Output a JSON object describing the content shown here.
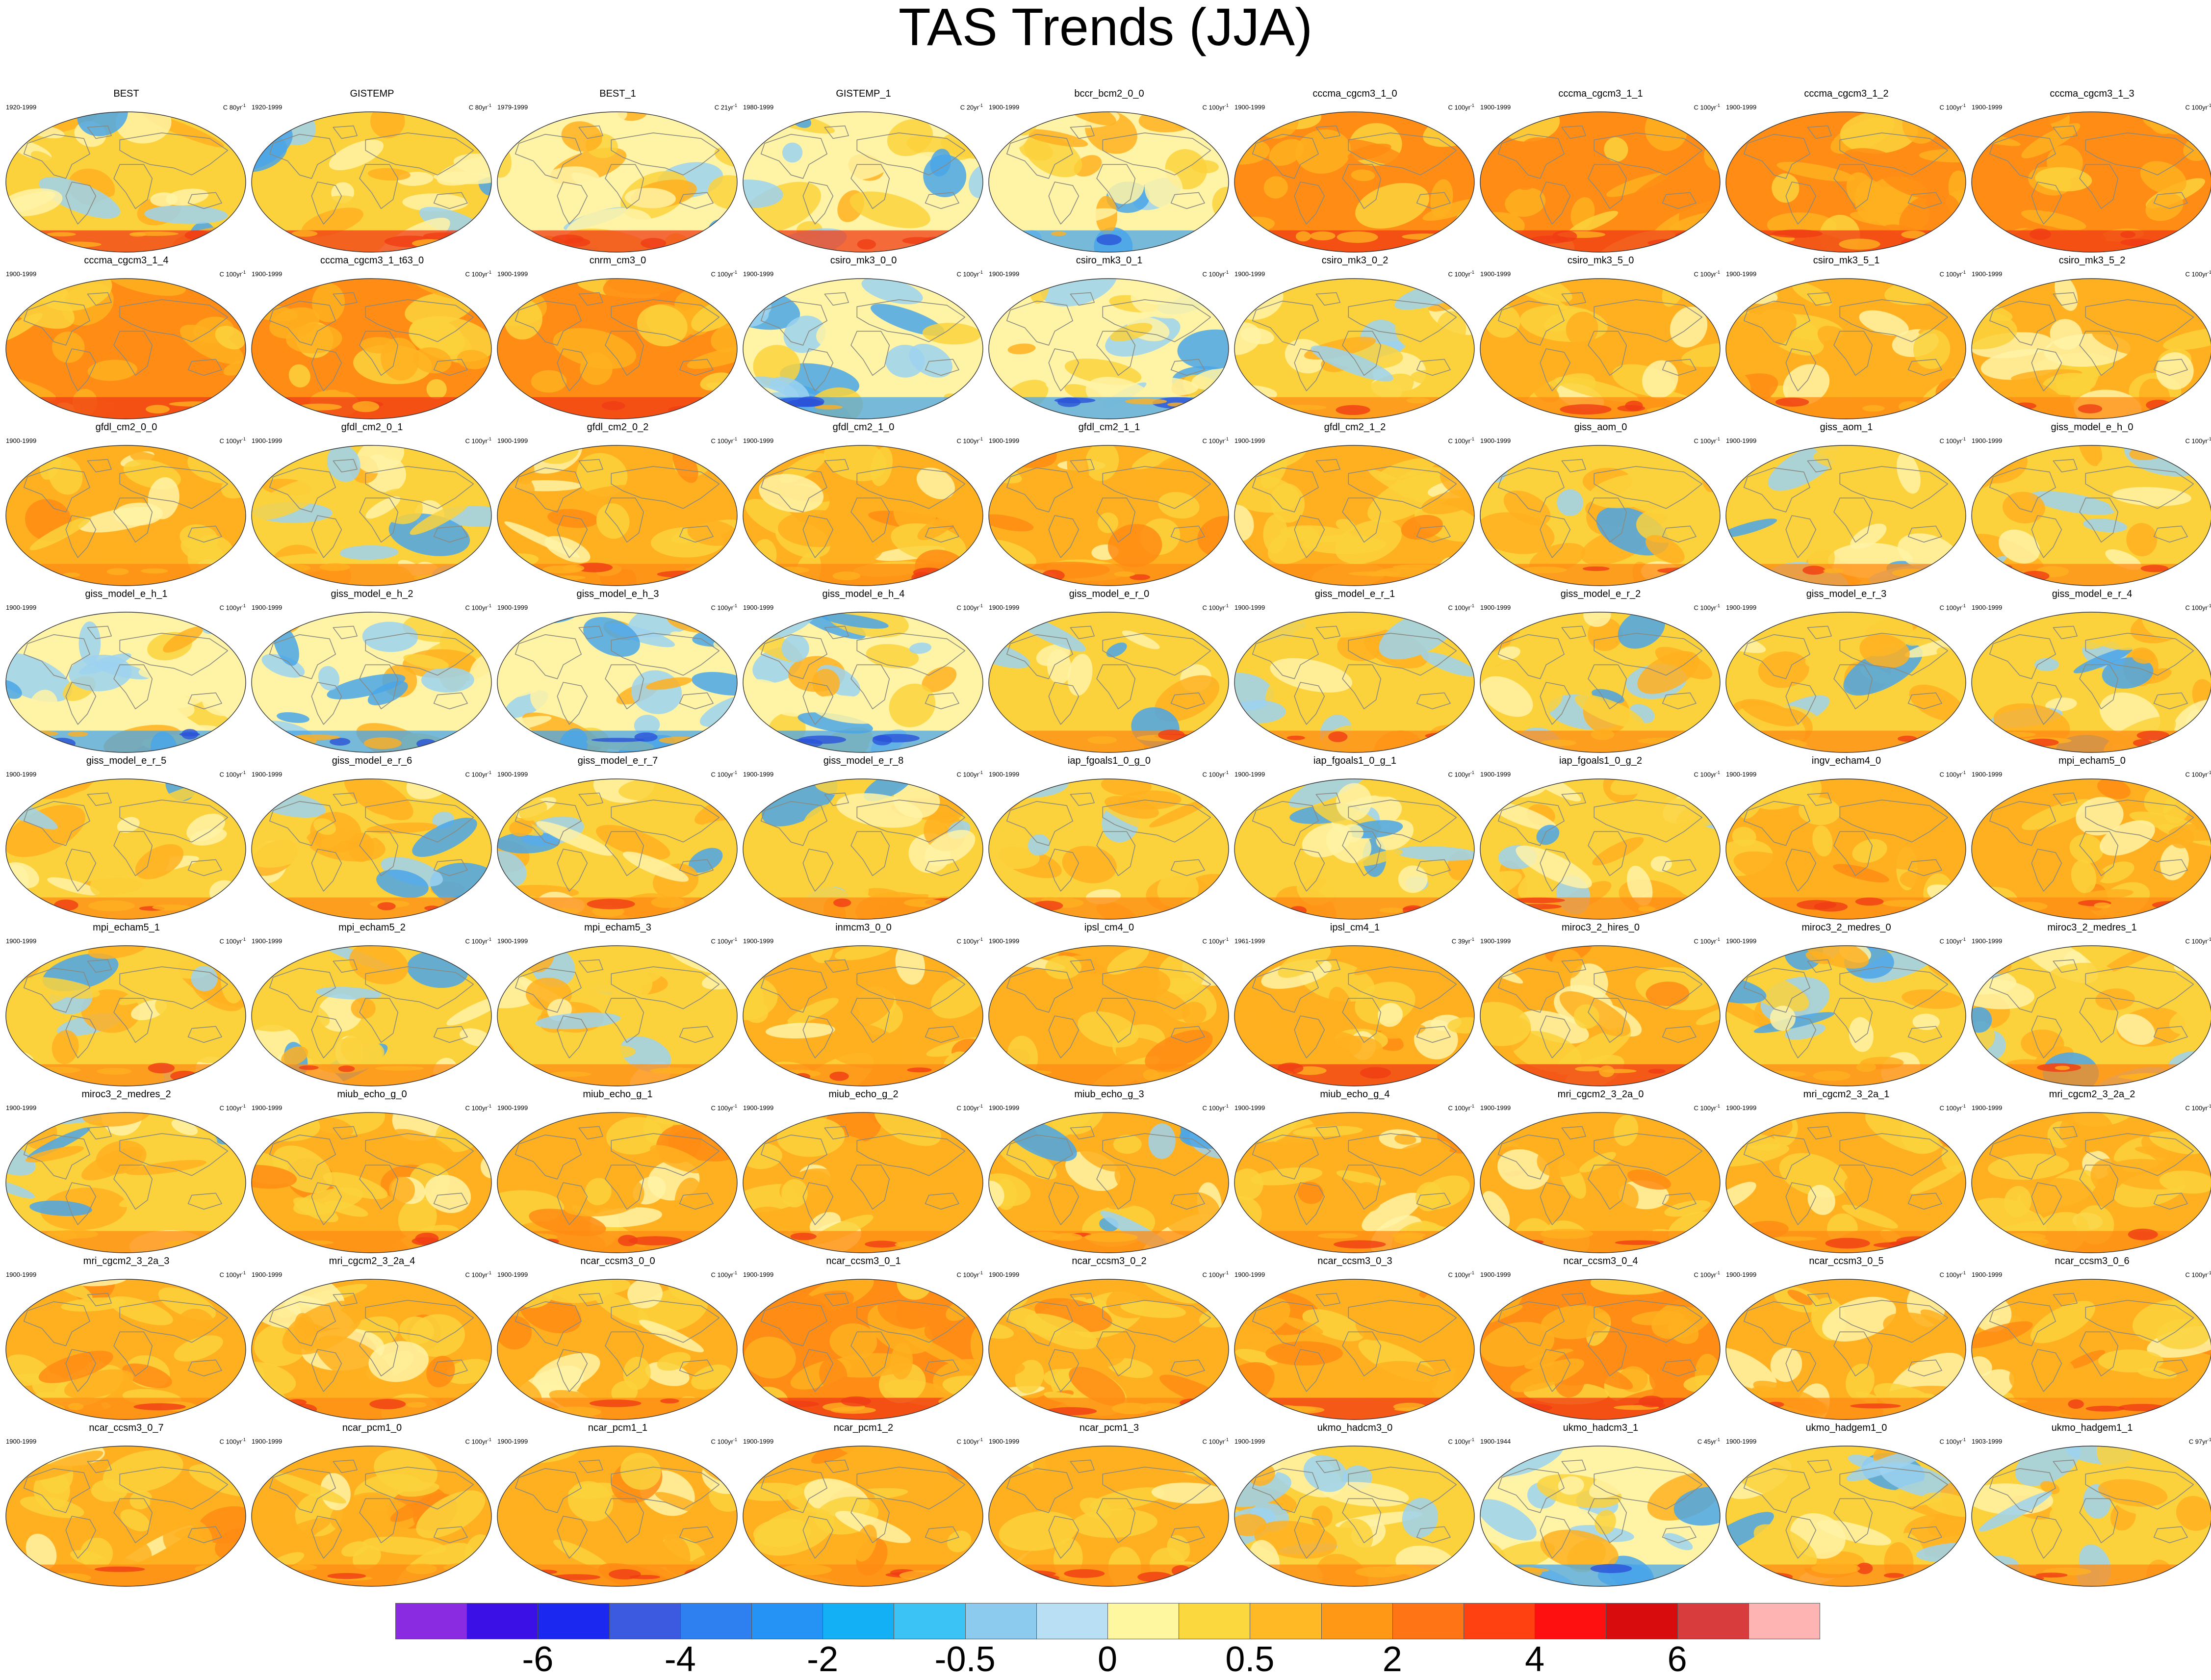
{
  "figure": {
    "title": "TAS Trends (JJA)"
  },
  "panels": [
    {
      "name": "BEST",
      "period": "1920-1999",
      "unit": "C 80yr",
      "warm": 0.55,
      "scheme": "obs"
    },
    {
      "name": "GISTEMP",
      "period": "1920-1999",
      "unit": "C 80yr",
      "warm": 0.6,
      "scheme": "obs"
    },
    {
      "name": "BEST_1",
      "period": "1979-1999",
      "unit": "C 21yr",
      "warm": 0.45,
      "scheme": "obs"
    },
    {
      "name": "GISTEMP_1",
      "period": "1980-1999",
      "unit": "C 20yr",
      "warm": 0.4,
      "scheme": "obs"
    },
    {
      "name": "bccr_bcm2_0_0",
      "period": "1900-1999",
      "unit": "C 100yr",
      "warm": 0.45,
      "scheme": "cool"
    },
    {
      "name": "cccma_cgcm3_1_0",
      "period": "1900-1999",
      "unit": "C 100yr",
      "warm": 0.95,
      "scheme": "hot"
    },
    {
      "name": "cccma_cgcm3_1_1",
      "period": "1900-1999",
      "unit": "C 100yr",
      "warm": 0.95,
      "scheme": "hot"
    },
    {
      "name": "cccma_cgcm3_1_2",
      "period": "1900-1999",
      "unit": "C 100yr",
      "warm": 0.95,
      "scheme": "hot"
    },
    {
      "name": "cccma_cgcm3_1_3",
      "period": "1900-1999",
      "unit": "C 100yr",
      "warm": 0.95,
      "scheme": "hot"
    },
    {
      "name": "cccma_cgcm3_1_4",
      "period": "1900-1999",
      "unit": "C 100yr",
      "warm": 0.95,
      "scheme": "hot"
    },
    {
      "name": "cccma_cgcm3_1_t63_0",
      "period": "1900-1999",
      "unit": "C 100yr",
      "warm": 0.95,
      "scheme": "hot"
    },
    {
      "name": "cnrm_cm3_0",
      "period": "1900-1999",
      "unit": "C 100yr",
      "warm": 0.9,
      "scheme": "hot"
    },
    {
      "name": "csiro_mk3_0_0",
      "period": "1900-1999",
      "unit": "C 100yr",
      "warm": 0.4,
      "scheme": "cool"
    },
    {
      "name": "csiro_mk3_0_1",
      "period": "1900-1999",
      "unit": "C 100yr",
      "warm": 0.4,
      "scheme": "cool"
    },
    {
      "name": "csiro_mk3_0_2",
      "period": "1900-1999",
      "unit": "C 100yr",
      "warm": 0.55,
      "scheme": "mixed"
    },
    {
      "name": "csiro_mk3_5_0",
      "period": "1900-1999",
      "unit": "C 100yr",
      "warm": 0.75,
      "scheme": "warm"
    },
    {
      "name": "csiro_mk3_5_1",
      "period": "1900-1999",
      "unit": "C 100yr",
      "warm": 0.75,
      "scheme": "warm"
    },
    {
      "name": "csiro_mk3_5_2",
      "period": "1900-1999",
      "unit": "C 100yr",
      "warm": 0.75,
      "scheme": "warm"
    },
    {
      "name": "gfdl_cm2_0_0",
      "period": "1900-1999",
      "unit": "C 100yr",
      "warm": 0.7,
      "scheme": "warm"
    },
    {
      "name": "gfdl_cm2_0_1",
      "period": "1900-1999",
      "unit": "C 100yr",
      "warm": 0.55,
      "scheme": "mixed"
    },
    {
      "name": "gfdl_cm2_0_2",
      "period": "1900-1999",
      "unit": "C 100yr",
      "warm": 0.75,
      "scheme": "warm"
    },
    {
      "name": "gfdl_cm2_1_0",
      "period": "1900-1999",
      "unit": "C 100yr",
      "warm": 0.75,
      "scheme": "warm"
    },
    {
      "name": "gfdl_cm2_1_1",
      "period": "1900-1999",
      "unit": "C 100yr",
      "warm": 0.7,
      "scheme": "warm"
    },
    {
      "name": "gfdl_cm2_1_2",
      "period": "1900-1999",
      "unit": "C 100yr",
      "warm": 0.7,
      "scheme": "warm"
    },
    {
      "name": "giss_aom_0",
      "period": "1900-1999",
      "unit": "C 100yr",
      "warm": 0.6,
      "scheme": "mixed"
    },
    {
      "name": "giss_aom_1",
      "period": "1900-1999",
      "unit": "C 100yr",
      "warm": 0.6,
      "scheme": "mixed"
    },
    {
      "name": "giss_model_e_h_0",
      "period": "1900-1999",
      "unit": "C 100yr",
      "warm": 0.55,
      "scheme": "mixed"
    },
    {
      "name": "giss_model_e_h_1",
      "period": "1900-1999",
      "unit": "C 100yr",
      "warm": 0.5,
      "scheme": "cool"
    },
    {
      "name": "giss_model_e_h_2",
      "period": "1900-1999",
      "unit": "C 100yr",
      "warm": 0.5,
      "scheme": "cool"
    },
    {
      "name": "giss_model_e_h_3",
      "period": "1900-1999",
      "unit": "C 100yr",
      "warm": 0.5,
      "scheme": "cool"
    },
    {
      "name": "giss_model_e_h_4",
      "period": "1900-1999",
      "unit": "C 100yr",
      "warm": 0.5,
      "scheme": "cool"
    },
    {
      "name": "giss_model_e_r_0",
      "period": "1900-1999",
      "unit": "C 100yr",
      "warm": 0.65,
      "scheme": "mixed"
    },
    {
      "name": "giss_model_e_r_1",
      "period": "1900-1999",
      "unit": "C 100yr",
      "warm": 0.65,
      "scheme": "mixed"
    },
    {
      "name": "giss_model_e_r_2",
      "period": "1900-1999",
      "unit": "C 100yr",
      "warm": 0.65,
      "scheme": "mixed"
    },
    {
      "name": "giss_model_e_r_3",
      "period": "1900-1999",
      "unit": "C 100yr",
      "warm": 0.65,
      "scheme": "mixed"
    },
    {
      "name": "giss_model_e_r_4",
      "period": "1900-1999",
      "unit": "C 100yr",
      "warm": 0.65,
      "scheme": "mixed"
    },
    {
      "name": "giss_model_e_r_5",
      "period": "1900-1999",
      "unit": "C 100yr",
      "warm": 0.65,
      "scheme": "mixed"
    },
    {
      "name": "giss_model_e_r_6",
      "period": "1900-1999",
      "unit": "C 100yr",
      "warm": 0.65,
      "scheme": "mixed"
    },
    {
      "name": "giss_model_e_r_7",
      "period": "1900-1999",
      "unit": "C 100yr",
      "warm": 0.65,
      "scheme": "mixed"
    },
    {
      "name": "giss_model_e_r_8",
      "period": "1900-1999",
      "unit": "C 100yr",
      "warm": 0.6,
      "scheme": "mixed"
    },
    {
      "name": "iap_fgoals1_0_g_0",
      "period": "1900-1999",
      "unit": "C 100yr",
      "warm": 0.6,
      "scheme": "mixed"
    },
    {
      "name": "iap_fgoals1_0_g_1",
      "period": "1900-1999",
      "unit": "C 100yr",
      "warm": 0.65,
      "scheme": "mixed"
    },
    {
      "name": "iap_fgoals1_0_g_2",
      "period": "1900-1999",
      "unit": "C 100yr",
      "warm": 0.55,
      "scheme": "mixed"
    },
    {
      "name": "ingv_echam4_0",
      "period": "1900-1999",
      "unit": "C 100yr",
      "warm": 0.8,
      "scheme": "warm"
    },
    {
      "name": "mpi_echam5_0",
      "period": "1900-1999",
      "unit": "C 100yr",
      "warm": 0.7,
      "scheme": "warm"
    },
    {
      "name": "mpi_echam5_1",
      "period": "1900-1999",
      "unit": "C 100yr",
      "warm": 0.6,
      "scheme": "mixed"
    },
    {
      "name": "mpi_echam5_2",
      "period": "1900-1999",
      "unit": "C 100yr",
      "warm": 0.6,
      "scheme": "mixed"
    },
    {
      "name": "mpi_echam5_3",
      "period": "1900-1999",
      "unit": "C 100yr",
      "warm": 0.6,
      "scheme": "mixed"
    },
    {
      "name": "inmcm3_0_0",
      "period": "1900-1999",
      "unit": "C 100yr",
      "warm": 0.8,
      "scheme": "warm"
    },
    {
      "name": "ipsl_cm4_0",
      "period": "1900-1999",
      "unit": "C 100yr",
      "warm": 0.8,
      "scheme": "warm"
    },
    {
      "name": "ipsl_cm4_1",
      "period": "1961-1999",
      "unit": "C 39yr",
      "warm": 0.85,
      "scheme": "warm"
    },
    {
      "name": "miroc3_2_hires_0",
      "period": "1900-1999",
      "unit": "C 100yr",
      "warm": 0.85,
      "scheme": "warm"
    },
    {
      "name": "miroc3_2_medres_0",
      "period": "1900-1999",
      "unit": "C 100yr",
      "warm": 0.6,
      "scheme": "mixed"
    },
    {
      "name": "miroc3_2_medres_1",
      "period": "1900-1999",
      "unit": "C 100yr",
      "warm": 0.6,
      "scheme": "mixed"
    },
    {
      "name": "miroc3_2_medres_2",
      "period": "1900-1999",
      "unit": "C 100yr",
      "warm": 0.6,
      "scheme": "mixed"
    },
    {
      "name": "miub_echo_g_0",
      "period": "1900-1999",
      "unit": "C 100yr",
      "warm": 0.75,
      "scheme": "warm"
    },
    {
      "name": "miub_echo_g_1",
      "period": "1900-1999",
      "unit": "C 100yr",
      "warm": 0.75,
      "scheme": "warm"
    },
    {
      "name": "miub_echo_g_2",
      "period": "1900-1999",
      "unit": "C 100yr",
      "warm": 0.7,
      "scheme": "warm"
    },
    {
      "name": "miub_echo_g_3",
      "period": "1900-1999",
      "unit": "C 100yr",
      "warm": 0.7,
      "scheme": "mixed"
    },
    {
      "name": "miub_echo_g_4",
      "period": "1900-1999",
      "unit": "C 100yr",
      "warm": 0.75,
      "scheme": "warm"
    },
    {
      "name": "mri_cgcm2_3_2a_0",
      "period": "1900-1999",
      "unit": "C 100yr",
      "warm": 0.75,
      "scheme": "warm"
    },
    {
      "name": "mri_cgcm2_3_2a_1",
      "period": "1900-1999",
      "unit": "C 100yr",
      "warm": 0.7,
      "scheme": "warm"
    },
    {
      "name": "mri_cgcm2_3_2a_2",
      "period": "1900-1999",
      "unit": "C 100yr",
      "warm": 0.7,
      "scheme": "warm"
    },
    {
      "name": "mri_cgcm2_3_2a_3",
      "period": "1900-1999",
      "unit": "C 100yr",
      "warm": 0.7,
      "scheme": "warm"
    },
    {
      "name": "mri_cgcm2_3_2a_4",
      "period": "1900-1999",
      "unit": "C 100yr",
      "warm": 0.7,
      "scheme": "warm"
    },
    {
      "name": "ncar_ccsm3_0_0",
      "period": "1900-1999",
      "unit": "C 100yr",
      "warm": 0.8,
      "scheme": "warm"
    },
    {
      "name": "ncar_ccsm3_0_1",
      "period": "1900-1999",
      "unit": "C 100yr",
      "warm": 0.9,
      "scheme": "hot"
    },
    {
      "name": "ncar_ccsm3_0_2",
      "period": "1900-1999",
      "unit": "C 100yr",
      "warm": 0.8,
      "scheme": "warm"
    },
    {
      "name": "ncar_ccsm3_0_3",
      "period": "1900-1999",
      "unit": "C 100yr",
      "warm": 0.85,
      "scheme": "hot"
    },
    {
      "name": "ncar_ccsm3_0_4",
      "period": "1900-1999",
      "unit": "C 100yr",
      "warm": 0.9,
      "scheme": "hot"
    },
    {
      "name": "ncar_ccsm3_0_5",
      "period": "1900-1999",
      "unit": "C 100yr",
      "warm": 0.8,
      "scheme": "warm"
    },
    {
      "name": "ncar_ccsm3_0_6",
      "period": "1900-1999",
      "unit": "C 100yr",
      "warm": 0.8,
      "scheme": "warm"
    },
    {
      "name": "ncar_ccsm3_0_7",
      "period": "1900-1999",
      "unit": "C 100yr",
      "warm": 0.8,
      "scheme": "warm"
    },
    {
      "name": "ncar_pcm1_0",
      "period": "1900-1999",
      "unit": "C 100yr",
      "warm": 0.75,
      "scheme": "warm"
    },
    {
      "name": "ncar_pcm1_1",
      "period": "1900-1999",
      "unit": "C 100yr",
      "warm": 0.75,
      "scheme": "warm"
    },
    {
      "name": "ncar_pcm1_2",
      "period": "1900-1999",
      "unit": "C 100yr",
      "warm": 0.75,
      "scheme": "warm"
    },
    {
      "name": "ncar_pcm1_3",
      "period": "1900-1999",
      "unit": "C 100yr",
      "warm": 0.75,
      "scheme": "warm"
    },
    {
      "name": "ukmo_hadcm3_0",
      "period": "1900-1999",
      "unit": "C 100yr",
      "warm": 0.55,
      "scheme": "mixed"
    },
    {
      "name": "ukmo_hadcm3_1",
      "period": "1900-1944",
      "unit": "C 45yr",
      "warm": 0.35,
      "scheme": "cool"
    },
    {
      "name": "ukmo_hadgem1_0",
      "period": "1900-1999",
      "unit": "C 100yr",
      "warm": 0.65,
      "scheme": "mixed"
    },
    {
      "name": "ukmo_hadgem1_1",
      "period": "1903-1999",
      "unit": "C 97yr",
      "warm": 0.6,
      "scheme": "mixed"
    }
  ],
  "unit_superscript": "-1",
  "colorbar": {
    "colors": [
      "#8a2be2",
      "#3a10e6",
      "#1b28f0",
      "#3c5ae0",
      "#2e7ff0",
      "#2493f5",
      "#14b0f5",
      "#3cc3f5",
      "#8ccbee",
      "#b9dff5",
      "#fff7a0",
      "#fbd83e",
      "#ffb925",
      "#ff9814",
      "#ff7414",
      "#ff4010",
      "#ff1010",
      "#d80c0c",
      "#d83c3c",
      "#ffb4b4"
    ],
    "labels": [
      "-6",
      "-4",
      "-2",
      "-0.5",
      "0",
      "0.5",
      "2",
      "4",
      "6"
    ]
  },
  "palette": {
    "ocean_cool": "#9cd2f0",
    "blue": "#4aa6e8",
    "deep_blue": "#2b52d8",
    "pale": "#fff3a6",
    "yellow": "#fcd23c",
    "orange": "#ffb020",
    "dark_orange": "#ff8c14",
    "red": "#f03c14",
    "coast": "#8a8a80"
  }
}
